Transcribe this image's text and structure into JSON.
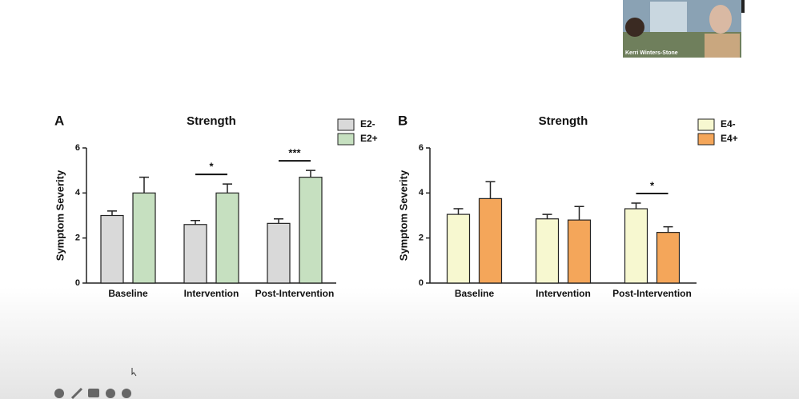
{
  "chart_data": [
    {
      "type": "bar",
      "panel_label": "A",
      "title": "Strength",
      "y_label": "Symptom Severity",
      "categories": [
        "Baseline",
        "Intervention",
        "Post-Intervention"
      ],
      "series": [
        {
          "name": "E2-",
          "color": "#d9d9d9",
          "values": [
            3.0,
            2.6,
            2.65
          ],
          "errors": [
            0.2,
            0.18,
            0.2
          ]
        },
        {
          "name": "E2+",
          "color": "#c6e0c0",
          "values": [
            4.0,
            4.0,
            4.7
          ],
          "errors": [
            0.7,
            0.4,
            0.3
          ]
        }
      ],
      "significance": [
        null,
        "*",
        "***"
      ],
      "ylim": [
        0,
        6
      ],
      "yticks": [
        0,
        2,
        4,
        6
      ],
      "grid": false
    },
    {
      "type": "bar",
      "panel_label": "B",
      "title": "Strength",
      "y_label": "Symptom Severity",
      "categories": [
        "Baseline",
        "Intervention",
        "Post-Intervention"
      ],
      "series": [
        {
          "name": "E4-",
          "color": "#f7f8d0",
          "values": [
            3.05,
            2.85,
            3.3
          ],
          "errors": [
            0.25,
            0.2,
            0.25
          ]
        },
        {
          "name": "E4+",
          "color": "#f4a65a",
          "values": [
            3.75,
            2.8,
            2.25
          ],
          "errors": [
            0.75,
            0.6,
            0.25
          ]
        }
      ],
      "significance": [
        null,
        null,
        "*"
      ],
      "ylim": [
        0,
        6
      ],
      "yticks": [
        0,
        2,
        4,
        6
      ],
      "grid": false
    }
  ],
  "video": {
    "caption": "Kerri Winters-Stone"
  }
}
